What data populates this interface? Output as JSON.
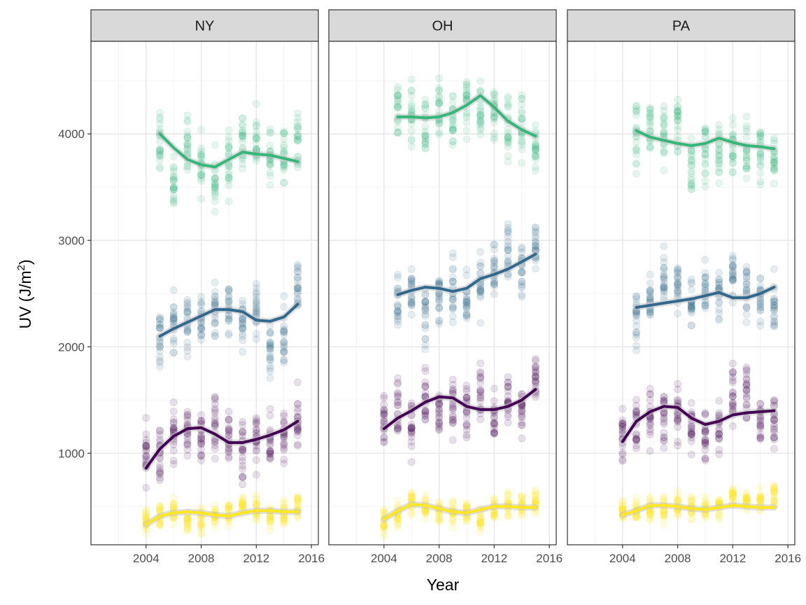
{
  "chart_data": {
    "type": "scatter",
    "facets": [
      "NY",
      "OH",
      "PA"
    ],
    "xlabel": "Year",
    "ylabel": "UV (J/m²)",
    "ylabel_parts": {
      "main": "UV (J/m",
      "sup": "2",
      "close": ")"
    },
    "xlim": [
      2000.0,
      2016.5
    ],
    "ylim": [
      140,
      4870
    ],
    "x_ticks": [
      2004,
      2008,
      2012,
      2016
    ],
    "y_ticks": [
      1000,
      2000,
      3000,
      4000
    ],
    "grid": true,
    "legend": "none",
    "point_alpha": 0.12,
    "series": [
      {
        "color": "#FDE725",
        "trend": {
          "NY": [
            [
              2004,
              330
            ],
            [
              2005,
              410
            ],
            [
              2006,
              440
            ],
            [
              2007,
              450
            ],
            [
              2008,
              440
            ],
            [
              2009,
              420
            ],
            [
              2010,
              410
            ],
            [
              2011,
              440
            ],
            [
              2012,
              460
            ],
            [
              2013,
              460
            ],
            [
              2014,
              450
            ],
            [
              2015,
              450
            ]
          ],
          "OH": [
            [
              2004,
              380
            ],
            [
              2005,
              460
            ],
            [
              2006,
              520
            ],
            [
              2007,
              510
            ],
            [
              2008,
              480
            ],
            [
              2009,
              450
            ],
            [
              2010,
              440
            ],
            [
              2011,
              470
            ],
            [
              2012,
              500
            ],
            [
              2013,
              500
            ],
            [
              2014,
              490
            ],
            [
              2015,
              490
            ]
          ],
          "PA": [
            [
              2004,
              420
            ],
            [
              2005,
              460
            ],
            [
              2006,
              510
            ],
            [
              2007,
              510
            ],
            [
              2008,
              500
            ],
            [
              2009,
              480
            ],
            [
              2010,
              470
            ],
            [
              2011,
              490
            ],
            [
              2012,
              510
            ],
            [
              2013,
              500
            ],
            [
              2014,
              490
            ],
            [
              2015,
              490
            ]
          ]
        }
      },
      {
        "color": "#440154",
        "trend": {
          "NY": [
            [
              2004,
              860
            ],
            [
              2005,
              1040
            ],
            [
              2006,
              1160
            ],
            [
              2007,
              1230
            ],
            [
              2008,
              1240
            ],
            [
              2009,
              1180
            ],
            [
              2010,
              1100
            ],
            [
              2011,
              1100
            ],
            [
              2012,
              1130
            ],
            [
              2013,
              1170
            ],
            [
              2014,
              1220
            ],
            [
              2015,
              1300
            ]
          ],
          "OH": [
            [
              2004,
              1230
            ],
            [
              2005,
              1330
            ],
            [
              2006,
              1400
            ],
            [
              2007,
              1480
            ],
            [
              2008,
              1530
            ],
            [
              2009,
              1520
            ],
            [
              2010,
              1440
            ],
            [
              2011,
              1410
            ],
            [
              2012,
              1410
            ],
            [
              2013,
              1440
            ],
            [
              2014,
              1500
            ],
            [
              2015,
              1600
            ]
          ],
          "PA": [
            [
              2004,
              1110
            ],
            [
              2005,
              1300
            ],
            [
              2006,
              1390
            ],
            [
              2007,
              1440
            ],
            [
              2008,
              1430
            ],
            [
              2009,
              1330
            ],
            [
              2010,
              1270
            ],
            [
              2011,
              1300
            ],
            [
              2012,
              1360
            ],
            [
              2013,
              1380
            ],
            [
              2014,
              1390
            ],
            [
              2015,
              1400
            ]
          ]
        }
      },
      {
        "color": "#31688E",
        "trend": {
          "NY": [
            [
              2005,
              2100
            ],
            [
              2006,
              2170
            ],
            [
              2007,
              2230
            ],
            [
              2008,
              2290
            ],
            [
              2009,
              2350
            ],
            [
              2010,
              2350
            ],
            [
              2011,
              2330
            ],
            [
              2012,
              2250
            ],
            [
              2013,
              2240
            ],
            [
              2014,
              2280
            ],
            [
              2015,
              2400
            ]
          ],
          "OH": [
            [
              2005,
              2490
            ],
            [
              2006,
              2530
            ],
            [
              2007,
              2560
            ],
            [
              2008,
              2550
            ],
            [
              2009,
              2520
            ],
            [
              2010,
              2550
            ],
            [
              2011,
              2640
            ],
            [
              2012,
              2680
            ],
            [
              2013,
              2730
            ],
            [
              2014,
              2800
            ],
            [
              2015,
              2870
            ]
          ],
          "PA": [
            [
              2005,
              2370
            ],
            [
              2006,
              2390
            ],
            [
              2007,
              2410
            ],
            [
              2008,
              2430
            ],
            [
              2009,
              2450
            ],
            [
              2010,
              2480
            ],
            [
              2011,
              2510
            ],
            [
              2012,
              2460
            ],
            [
              2013,
              2460
            ],
            [
              2014,
              2500
            ],
            [
              2015,
              2560
            ]
          ]
        }
      },
      {
        "color": "#35B779",
        "trend": {
          "NY": [
            [
              2005,
              4000
            ],
            [
              2006,
              3870
            ],
            [
              2007,
              3760
            ],
            [
              2008,
              3710
            ],
            [
              2009,
              3690
            ],
            [
              2010,
              3760
            ],
            [
              2011,
              3830
            ],
            [
              2012,
              3810
            ],
            [
              2013,
              3800
            ],
            [
              2014,
              3770
            ],
            [
              2015,
              3740
            ]
          ],
          "OH": [
            [
              2005,
              4160
            ],
            [
              2006,
              4160
            ],
            [
              2007,
              4150
            ],
            [
              2008,
              4160
            ],
            [
              2009,
              4200
            ],
            [
              2010,
              4270
            ],
            [
              2011,
              4360
            ],
            [
              2012,
              4250
            ],
            [
              2013,
              4120
            ],
            [
              2014,
              4040
            ],
            [
              2015,
              3980
            ]
          ],
          "PA": [
            [
              2005,
              4030
            ],
            [
              2006,
              3970
            ],
            [
              2007,
              3940
            ],
            [
              2008,
              3910
            ],
            [
              2009,
              3890
            ],
            [
              2010,
              3910
            ],
            [
              2011,
              3960
            ],
            [
              2012,
              3920
            ],
            [
              2013,
              3890
            ],
            [
              2014,
              3880
            ],
            [
              2015,
              3860
            ]
          ]
        }
      }
    ]
  }
}
